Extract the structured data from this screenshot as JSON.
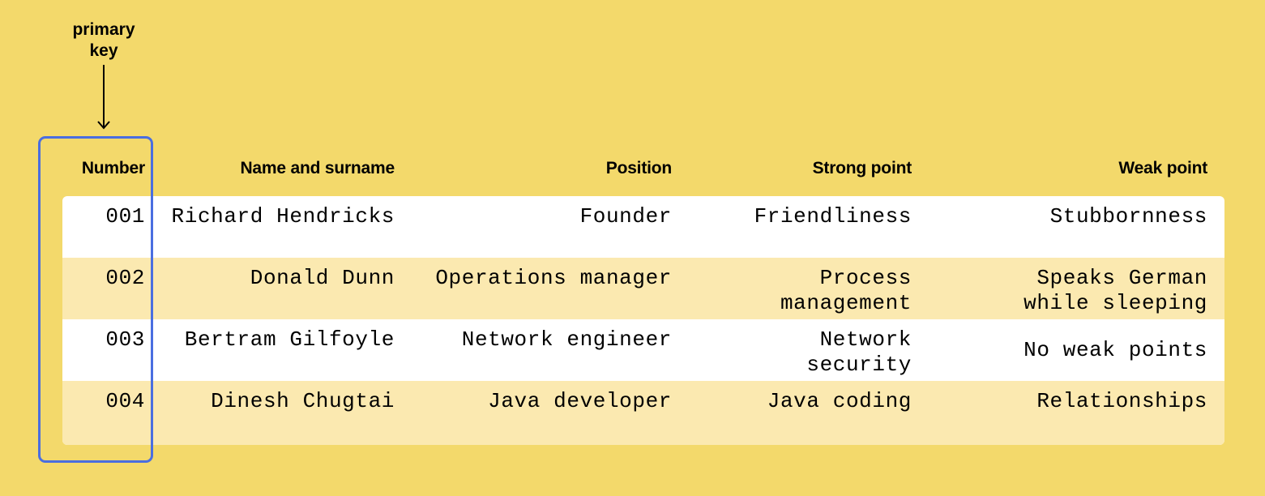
{
  "annotation": {
    "line1": "primary",
    "line2": "key",
    "arrow_icon": "down-arrow-icon"
  },
  "table": {
    "headers": [
      "Number",
      "Name and surname",
      "Position",
      "Strong point",
      "Weak point"
    ],
    "rows": [
      [
        "001",
        "Richard Hendricks",
        "Founder",
        "Friendliness",
        "Stubbornness"
      ],
      [
        "002",
        "Donald Dunn",
        "Operations manager",
        "Process\nmanagement",
        "Speaks German\nwhile sleeping"
      ],
      [
        "003",
        "Bertram Gilfoyle",
        "Network engineer",
        "Network\nsecurity",
        "No weak points"
      ],
      [
        "004",
        "Dinesh Chugtai",
        "Java developer",
        "Java coding",
        "Relationships"
      ]
    ]
  },
  "colors": {
    "background": "#f3d96b",
    "row_white": "#ffffff",
    "row_alt": "#fbe9b0",
    "highlight_border": "#4a6ee0"
  }
}
